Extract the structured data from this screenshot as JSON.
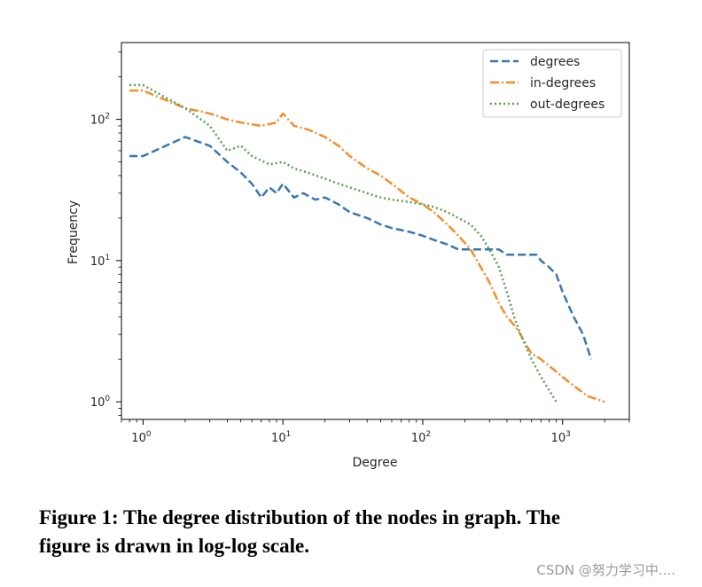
{
  "chart_data": {
    "type": "line",
    "title": "",
    "xlabel": "Degree",
    "ylabel": "Frequency",
    "xscale": "log",
    "yscale": "log",
    "xlim": [
      0.7,
      3000
    ],
    "ylim": [
      0.75,
      350
    ],
    "x_ticks": [
      {
        "value": 1,
        "base": "10",
        "exp": "0"
      },
      {
        "value": 10,
        "base": "10",
        "exp": "1"
      },
      {
        "value": 100,
        "base": "10",
        "exp": "2"
      },
      {
        "value": 1000,
        "base": "10",
        "exp": "3"
      }
    ],
    "y_ticks": [
      {
        "value": 1,
        "base": "10",
        "exp": "0"
      },
      {
        "value": 10,
        "base": "10",
        "exp": "1"
      },
      {
        "value": 100,
        "base": "10",
        "exp": "2"
      }
    ],
    "legend_position": "top-right",
    "series": [
      {
        "name": "degrees",
        "style": "dashed",
        "color": "#3a77b0",
        "x": [
          0.8,
          1,
          2,
          3,
          4,
          5,
          6,
          7,
          8,
          9,
          10,
          12,
          14,
          17,
          20,
          25,
          30,
          40,
          50,
          60,
          80,
          100,
          120,
          150,
          180,
          220,
          260,
          300,
          350,
          400,
          450,
          500,
          550,
          600,
          650,
          700,
          800,
          900,
          1000,
          1200,
          1400,
          1600
        ],
        "y": [
          55,
          55,
          75,
          65,
          50,
          42,
          35,
          28,
          33,
          30,
          35,
          28,
          30,
          27,
          28,
          25,
          22,
          20,
          18,
          17,
          16,
          15,
          14,
          13,
          12,
          12,
          12,
          12,
          12,
          11,
          11,
          11,
          11,
          11,
          11,
          10,
          9,
          8,
          6,
          4,
          3,
          2
        ]
      },
      {
        "name": "in-degrees",
        "style": "dashdot",
        "color": "#f28e2c",
        "x": [
          0.8,
          1,
          2,
          3,
          4,
          5,
          7,
          9,
          10,
          12,
          15,
          20,
          25,
          30,
          40,
          50,
          60,
          80,
          100,
          120,
          150,
          180,
          220,
          260,
          300,
          350,
          400,
          450,
          500,
          550,
          600,
          700,
          800,
          1000,
          1200,
          1500,
          2000
        ],
        "y": [
          160,
          160,
          120,
          110,
          100,
          95,
          90,
          95,
          110,
          90,
          85,
          75,
          65,
          55,
          45,
          40,
          35,
          28,
          25,
          22,
          18,
          15,
          12,
          9,
          7,
          5,
          4,
          3.5,
          3,
          2.5,
          2.2,
          2,
          1.8,
          1.5,
          1.3,
          1.1,
          1
        ]
      },
      {
        "name": "out-degrees",
        "style": "dotted",
        "color": "#59a14f",
        "x": [
          0.8,
          1,
          2,
          3,
          4,
          5,
          6,
          8,
          10,
          12,
          15,
          20,
          25,
          30,
          40,
          50,
          60,
          80,
          100,
          120,
          150,
          180,
          220,
          260,
          300,
          350,
          400,
          450,
          500,
          600,
          700,
          900
        ],
        "y": [
          175,
          175,
          120,
          90,
          60,
          65,
          55,
          48,
          50,
          45,
          42,
          38,
          35,
          33,
          30,
          28,
          27,
          26,
          25,
          24,
          22,
          20,
          18,
          15,
          12,
          9,
          6,
          4,
          3,
          2,
          1.5,
          1
        ]
      }
    ]
  },
  "caption": {
    "line1": "Figure 1: The degree distribution of the nodes in graph. The",
    "line2": "figure is drawn in log-log scale."
  },
  "watermark": "CSDN @努力学习中...."
}
